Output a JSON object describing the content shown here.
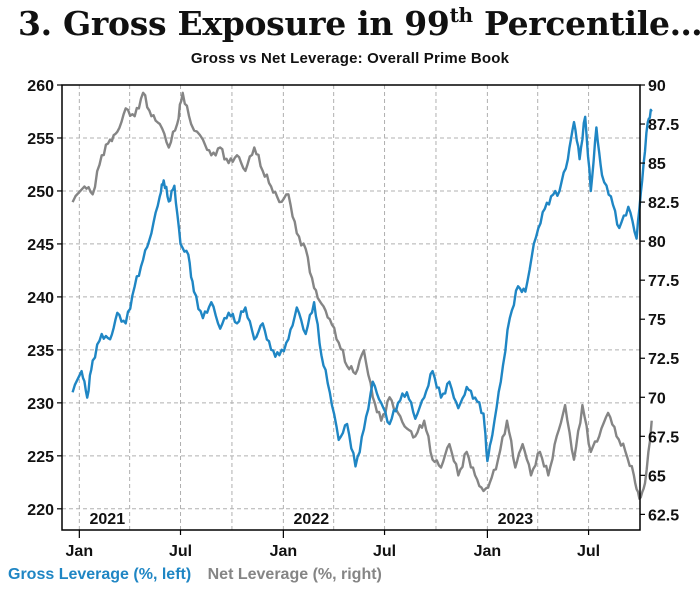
{
  "title": {
    "prefix": "3. Gross Exposure in 99",
    "sup": "th",
    "suffix": " Percentile…"
  },
  "colors": {
    "gross": "#1f86c4",
    "net": "#858585",
    "frame": "#000000",
    "grid": "#b0b0b0"
  },
  "chart_data": {
    "type": "line",
    "title": "Gross vs Net Leverage: Overall Prime Book",
    "grid": true,
    "x_range": [
      "2020-12",
      "2023-10"
    ],
    "year_labels": [
      "2021",
      "2022",
      "2023"
    ],
    "month_tick_labels": [
      "Jan",
      "Jul",
      "Jan",
      "Jul",
      "Jan",
      "Jul"
    ],
    "y_left": {
      "label": "%",
      "ylim": [
        218,
        260
      ],
      "ticks": [
        220,
        225,
        230,
        235,
        240,
        245,
        250,
        255,
        260
      ]
    },
    "y_right": {
      "label": "%",
      "ylim": [
        61.5,
        90
      ],
      "ticks": [
        "62.5",
        "65",
        "67.5",
        "70",
        "72.5",
        "75",
        "77.5",
        "80",
        "82.5",
        "85",
        "87.5",
        "90"
      ]
    },
    "series": [
      {
        "name": "Gross Leverage (%, left)",
        "axis": "left",
        "points": [
          [
            "2020-12-20",
            231
          ],
          [
            "2021-01-05",
            233
          ],
          [
            "2021-01-15",
            230.5
          ],
          [
            "2021-01-25",
            234
          ],
          [
            "2021-02-10",
            236.5
          ],
          [
            "2021-02-25",
            236
          ],
          [
            "2021-03-10",
            238.5
          ],
          [
            "2021-03-25",
            237.5
          ],
          [
            "2021-04-10",
            241
          ],
          [
            "2021-04-25",
            243.5
          ],
          [
            "2021-05-10",
            246
          ],
          [
            "2021-05-25",
            249.5
          ],
          [
            "2021-06-01",
            251
          ],
          [
            "2021-06-10",
            249
          ],
          [
            "2021-06-20",
            250.5
          ],
          [
            "2021-07-01",
            245
          ],
          [
            "2021-07-15",
            244
          ],
          [
            "2021-07-25",
            240.5
          ],
          [
            "2021-08-10",
            238
          ],
          [
            "2021-08-25",
            239.5
          ],
          [
            "2021-09-10",
            237
          ],
          [
            "2021-09-25",
            238.5
          ],
          [
            "2021-10-10",
            237.5
          ],
          [
            "2021-10-25",
            239
          ],
          [
            "2021-11-10",
            236
          ],
          [
            "2021-11-25",
            237.5
          ],
          [
            "2021-12-10",
            235
          ],
          [
            "2021-12-25",
            234.5
          ],
          [
            "2022-01-10",
            236
          ],
          [
            "2022-01-25",
            239
          ],
          [
            "2022-02-10",
            236.5
          ],
          [
            "2022-02-25",
            239.5
          ],
          [
            "2022-03-10",
            234.5
          ],
          [
            "2022-03-25",
            231
          ],
          [
            "2022-04-10",
            226.5
          ],
          [
            "2022-04-25",
            228
          ],
          [
            "2022-05-10",
            224
          ],
          [
            "2022-05-25",
            227.5
          ],
          [
            "2022-06-10",
            232
          ],
          [
            "2022-06-25",
            230
          ],
          [
            "2022-07-10",
            228
          ],
          [
            "2022-07-25",
            230
          ],
          [
            "2022-08-10",
            231
          ],
          [
            "2022-08-25",
            228.5
          ],
          [
            "2022-09-10",
            230.5
          ],
          [
            "2022-09-25",
            233
          ],
          [
            "2022-10-10",
            230.5
          ],
          [
            "2022-10-25",
            232
          ],
          [
            "2022-11-10",
            229.5
          ],
          [
            "2022-11-25",
            231.5
          ],
          [
            "2022-12-10",
            230.5
          ],
          [
            "2022-12-25",
            229
          ],
          [
            "2023-01-01",
            224.5
          ],
          [
            "2023-01-10",
            227
          ],
          [
            "2023-01-25",
            232
          ],
          [
            "2023-02-10",
            238
          ],
          [
            "2023-02-25",
            241
          ],
          [
            "2023-03-10",
            240.5
          ],
          [
            "2023-03-25",
            245
          ],
          [
            "2023-04-10",
            248
          ],
          [
            "2023-04-25",
            249.5
          ],
          [
            "2023-05-10",
            250
          ],
          [
            "2023-05-25",
            253
          ],
          [
            "2023-06-05",
            256.5
          ],
          [
            "2023-06-15",
            253
          ],
          [
            "2023-06-25",
            257
          ],
          [
            "2023-07-05",
            250
          ],
          [
            "2023-07-15",
            256
          ],
          [
            "2023-07-25",
            251.5
          ],
          [
            "2023-08-10",
            249.5
          ],
          [
            "2023-08-25",
            246.5
          ],
          [
            "2023-09-10",
            248.5
          ],
          [
            "2023-09-25",
            245.5
          ],
          [
            "2023-10-05",
            251
          ],
          [
            "2023-10-15",
            256.5
          ],
          [
            "2023-10-22",
            257.5
          ]
        ]
      },
      {
        "name": "Net Leverage (%, right)",
        "axis": "right",
        "points": [
          [
            "2020-12-20",
            82.5
          ],
          [
            "2021-01-10",
            83.5
          ],
          [
            "2021-01-25",
            83
          ],
          [
            "2021-02-10",
            85.5
          ],
          [
            "2021-02-25",
            86.5
          ],
          [
            "2021-03-10",
            87
          ],
          [
            "2021-03-25",
            88.5
          ],
          [
            "2021-04-10",
            88
          ],
          [
            "2021-04-25",
            89.5
          ],
          [
            "2021-05-10",
            88
          ],
          [
            "2021-05-25",
            87.5
          ],
          [
            "2021-06-10",
            86
          ],
          [
            "2021-06-25",
            87.5
          ],
          [
            "2021-07-05",
            89.5
          ],
          [
            "2021-07-20",
            87.5
          ],
          [
            "2021-08-10",
            86.5
          ],
          [
            "2021-08-25",
            85.5
          ],
          [
            "2021-09-10",
            86
          ],
          [
            "2021-09-25",
            85
          ],
          [
            "2021-10-10",
            85.5
          ],
          [
            "2021-10-25",
            84.5
          ],
          [
            "2021-11-10",
            86
          ],
          [
            "2021-11-25",
            84.5
          ],
          [
            "2021-12-10",
            83.5
          ],
          [
            "2021-12-25",
            82.5
          ],
          [
            "2022-01-10",
            83
          ],
          [
            "2022-01-25",
            80.5
          ],
          [
            "2022-02-10",
            79.5
          ],
          [
            "2022-02-25",
            77
          ],
          [
            "2022-03-10",
            76
          ],
          [
            "2022-03-25",
            75
          ],
          [
            "2022-04-10",
            73.5
          ],
          [
            "2022-04-25",
            72
          ],
          [
            "2022-05-10",
            71.5
          ],
          [
            "2022-05-25",
            73
          ],
          [
            "2022-06-10",
            70
          ],
          [
            "2022-06-25",
            68.5
          ],
          [
            "2022-07-10",
            70
          ],
          [
            "2022-07-25",
            69
          ],
          [
            "2022-08-10",
            68
          ],
          [
            "2022-08-25",
            67.5
          ],
          [
            "2022-09-10",
            68.5
          ],
          [
            "2022-09-25",
            66
          ],
          [
            "2022-10-10",
            65.5
          ],
          [
            "2022-10-25",
            67
          ],
          [
            "2022-11-10",
            65
          ],
          [
            "2022-11-25",
            66.5
          ],
          [
            "2022-12-10",
            65
          ],
          [
            "2022-12-25",
            64
          ],
          [
            "2023-01-05",
            64.5
          ],
          [
            "2023-01-20",
            66
          ],
          [
            "2023-02-05",
            68.5
          ],
          [
            "2023-02-20",
            65.5
          ],
          [
            "2023-03-05",
            67
          ],
          [
            "2023-03-20",
            65
          ],
          [
            "2023-04-05",
            66.5
          ],
          [
            "2023-04-20",
            65
          ],
          [
            "2023-05-05",
            67.5
          ],
          [
            "2023-05-20",
            69.5
          ],
          [
            "2023-06-05",
            66
          ],
          [
            "2023-06-20",
            69.5
          ],
          [
            "2023-07-05",
            66.5
          ],
          [
            "2023-07-20",
            67.5
          ],
          [
            "2023-08-05",
            69
          ],
          [
            "2023-08-20",
            67.5
          ],
          [
            "2023-09-05",
            66.5
          ],
          [
            "2023-09-20",
            65
          ],
          [
            "2023-09-30",
            63.5
          ],
          [
            "2023-10-10",
            64.5
          ],
          [
            "2023-10-22",
            68.5
          ]
        ]
      }
    ]
  }
}
